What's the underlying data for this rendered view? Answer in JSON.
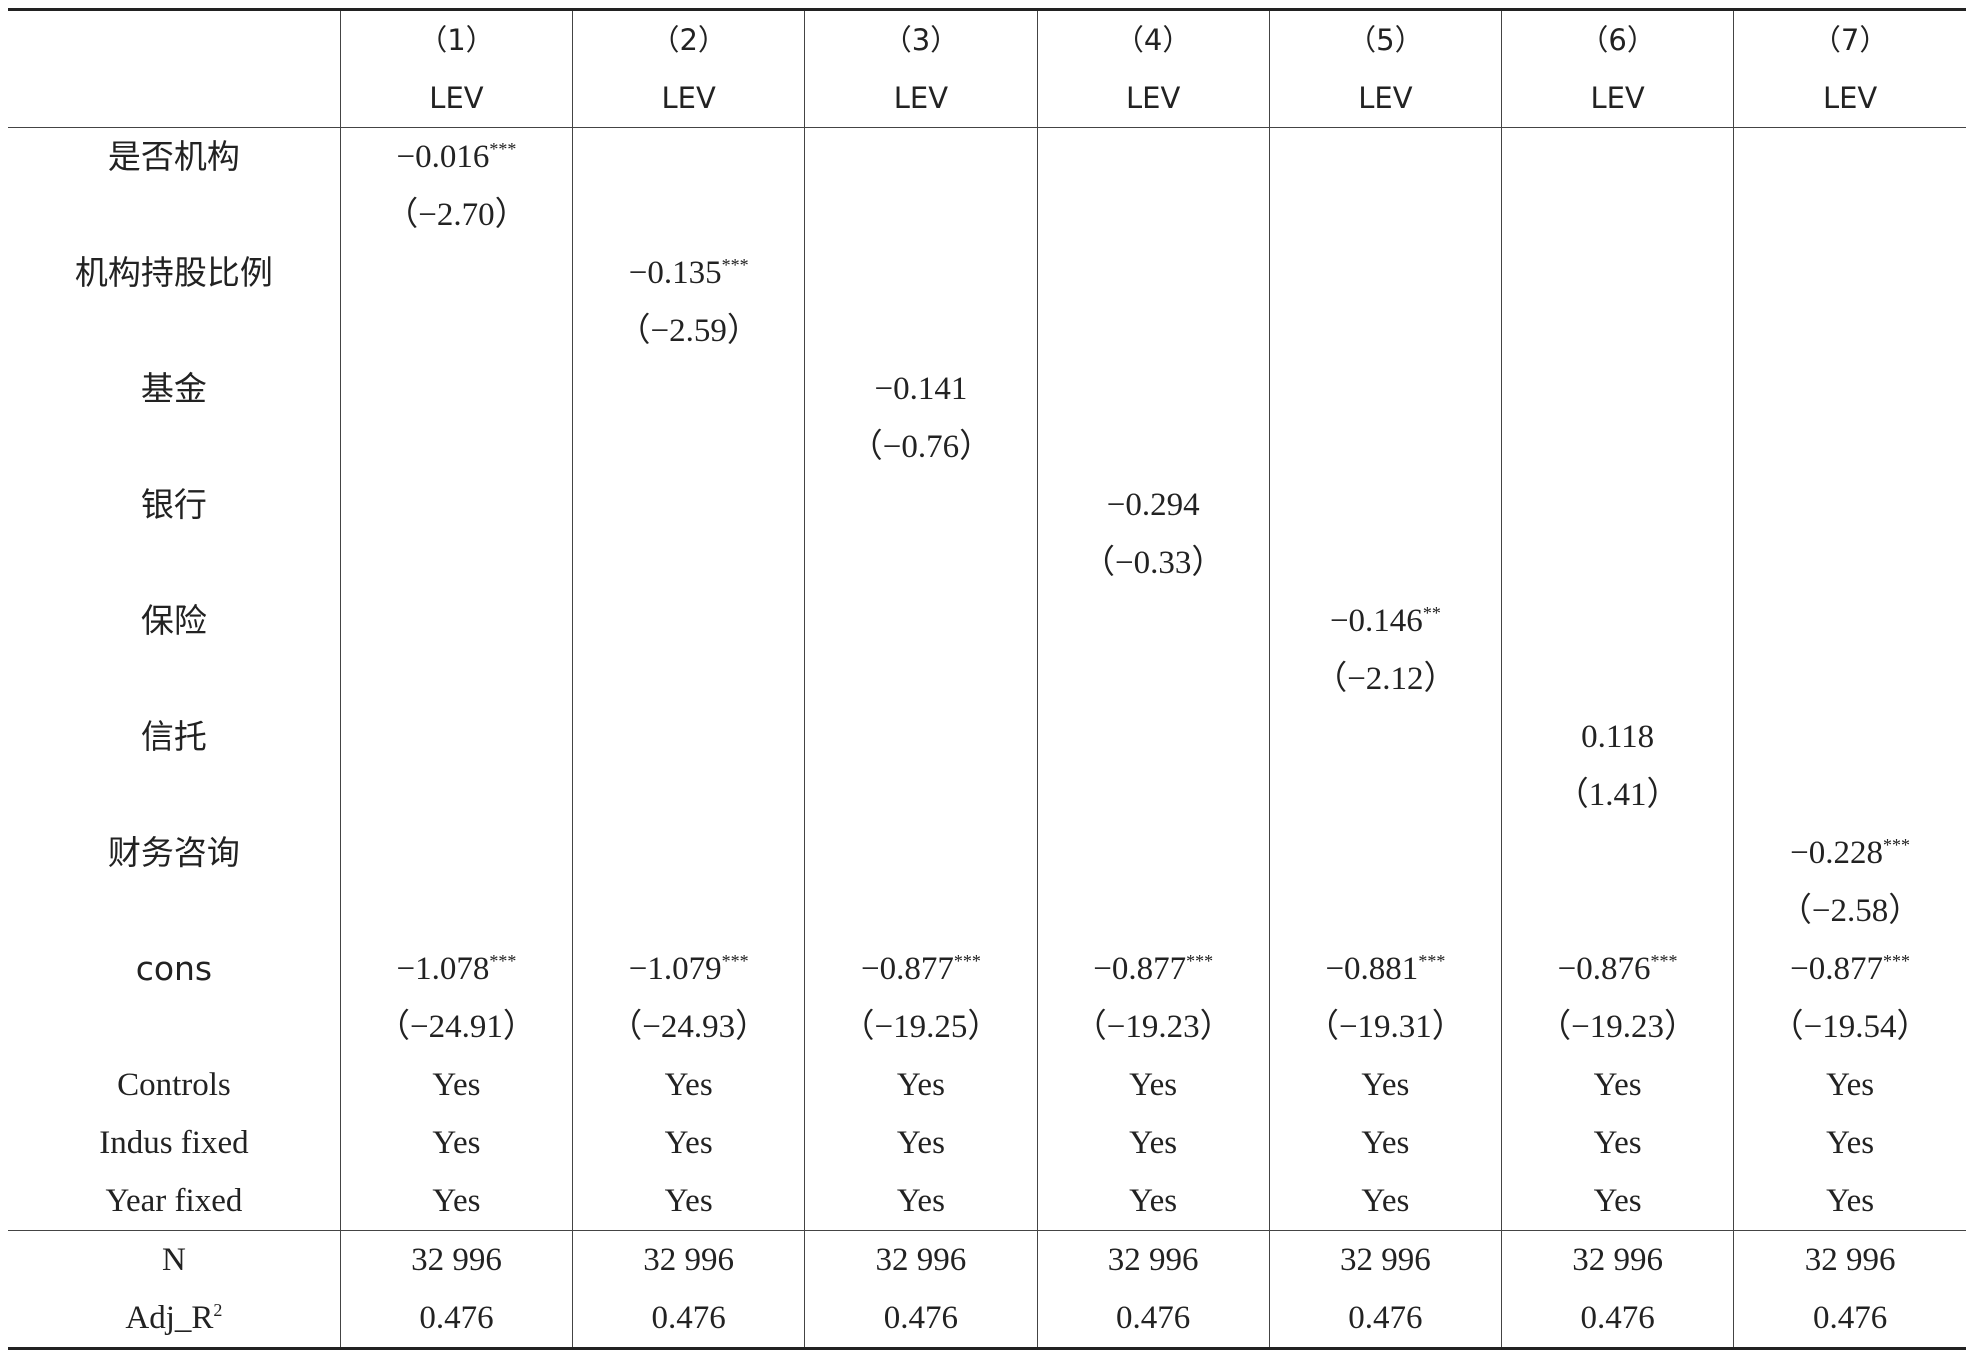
{
  "columns": [
    {
      "num": "（1）",
      "dep": "LEV"
    },
    {
      "num": "（2）",
      "dep": "LEV"
    },
    {
      "num": "（3）",
      "dep": "LEV"
    },
    {
      "num": "（4）",
      "dep": "LEV"
    },
    {
      "num": "（5）",
      "dep": "LEV"
    },
    {
      "num": "（6）",
      "dep": "LEV"
    },
    {
      "num": "（7）",
      "dep": "LEV"
    }
  ],
  "rows": [
    {
      "label": "是否机构",
      "coef": [
        "−0.016",
        "",
        "",
        "",
        "",
        "",
        ""
      ],
      "stars": [
        "***",
        "",
        "",
        "",
        "",
        "",
        ""
      ],
      "t": [
        "（−2.70）",
        "",
        "",
        "",
        "",
        "",
        ""
      ]
    },
    {
      "label": "机构持股比例",
      "coef": [
        "",
        "−0.135",
        "",
        "",
        "",
        "",
        ""
      ],
      "stars": [
        "",
        "***",
        "",
        "",
        "",
        "",
        ""
      ],
      "t": [
        "",
        "（−2.59）",
        "",
        "",
        "",
        "",
        ""
      ]
    },
    {
      "label": "基金",
      "coef": [
        "",
        "",
        "−0.141",
        "",
        "",
        "",
        ""
      ],
      "stars": [
        "",
        "",
        "",
        "",
        "",
        "",
        ""
      ],
      "t": [
        "",
        "",
        "（−0.76）",
        "",
        "",
        "",
        ""
      ]
    },
    {
      "label": "银行",
      "coef": [
        "",
        "",
        "",
        "−0.294",
        "",
        "",
        ""
      ],
      "stars": [
        "",
        "",
        "",
        "",
        "",
        "",
        ""
      ],
      "t": [
        "",
        "",
        "",
        "（−0.33）",
        "",
        "",
        ""
      ]
    },
    {
      "label": "保险",
      "coef": [
        "",
        "",
        "",
        "",
        "−0.146",
        "",
        ""
      ],
      "stars": [
        "",
        "",
        "",
        "",
        "**",
        "",
        ""
      ],
      "t": [
        "",
        "",
        "",
        "",
        "（−2.12）",
        "",
        ""
      ]
    },
    {
      "label": "信托",
      "coef": [
        "",
        "",
        "",
        "",
        "",
        "0.118",
        ""
      ],
      "stars": [
        "",
        "",
        "",
        "",
        "",
        "",
        ""
      ],
      "t": [
        "",
        "",
        "",
        "",
        "",
        "（1.41）",
        ""
      ]
    },
    {
      "label": "财务咨询",
      "coef": [
        "",
        "",
        "",
        "",
        "",
        "",
        "−0.228"
      ],
      "stars": [
        "",
        "",
        "",
        "",
        "",
        "",
        "***"
      ],
      "t": [
        "",
        "",
        "",
        "",
        "",
        "",
        "（−2.58）"
      ]
    },
    {
      "label": "cons",
      "coef": [
        "−1.078",
        "−1.079",
        "−0.877",
        "−0.877",
        "−0.881",
        "−0.876",
        "−0.877"
      ],
      "stars": [
        "***",
        "***",
        "***",
        "***",
        "***",
        "***",
        "***"
      ],
      "t": [
        "（−24.91）",
        "（−24.93）",
        "（−19.25）",
        "（−19.23）",
        "（−19.31）",
        "（−19.23）",
        "（−19.54）"
      ]
    }
  ],
  "controls": [
    {
      "label": "Controls",
      "values": [
        "Yes",
        "Yes",
        "Yes",
        "Yes",
        "Yes",
        "Yes",
        "Yes"
      ]
    },
    {
      "label": "Indus fixed",
      "values": [
        "Yes",
        "Yes",
        "Yes",
        "Yes",
        "Yes",
        "Yes",
        "Yes"
      ]
    },
    {
      "label": "Year fixed",
      "values": [
        "Yes",
        "Yes",
        "Yes",
        "Yes",
        "Yes",
        "Yes",
        "Yes"
      ]
    }
  ],
  "stats": [
    {
      "label": "N",
      "sup": "",
      "values": [
        "32 996",
        "32 996",
        "32 996",
        "32 996",
        "32 996",
        "32 996",
        "32 996"
      ]
    },
    {
      "label": "Adj_R",
      "sup": "2",
      "values": [
        "0.476",
        "0.476",
        "0.476",
        "0.476",
        "0.476",
        "0.476",
        "0.476"
      ]
    }
  ]
}
